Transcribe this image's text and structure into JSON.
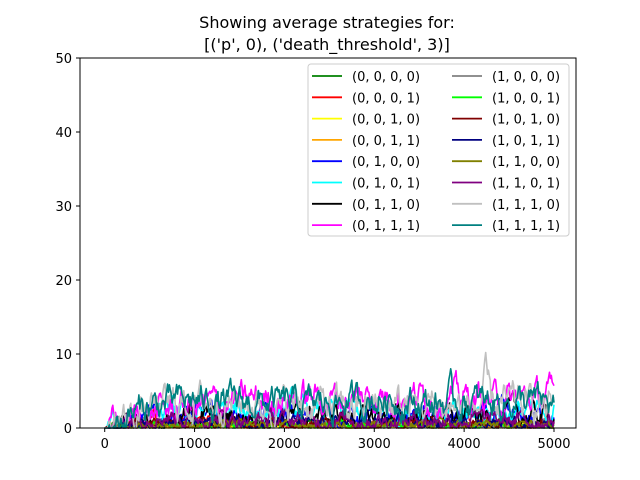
{
  "chart_data": {
    "type": "line",
    "title_lines": [
      "Showing average strategies for:",
      "[('p', 0), ('death_threshold', 3)]"
    ],
    "xlabel": "",
    "ylabel": "",
    "xlim": [
      -275,
      5245
    ],
    "ylim": [
      0,
      50
    ],
    "x_ticks": [
      0,
      1000,
      2000,
      3000,
      4000,
      5000
    ],
    "y_ticks": [
      0,
      10,
      20,
      30,
      40,
      50
    ],
    "x_tick_labels": [
      "0",
      "1000",
      "2000",
      "3000",
      "4000",
      "5000"
    ],
    "y_tick_labels": [
      "0",
      "10",
      "20",
      "30",
      "40",
      "50"
    ],
    "grid": false,
    "legend_position": "top-right",
    "legend_columns": 2,
    "x_range": [
      0,
      5000
    ],
    "series": [
      {
        "name": "(0, 0, 0, 0)",
        "color": "#008000",
        "mean": 0.4,
        "amp": 0.5,
        "peak": 1.4,
        "values": [
          0,
          0.6,
          0.5,
          0.3,
          0.6,
          0.4,
          0.5,
          0.3,
          0.5,
          0.4,
          0.5,
          0.3
        ]
      },
      {
        "name": "(0, 0, 0, 1)",
        "color": "#ff0000",
        "mean": 0.6,
        "amp": 0.7,
        "peak": 2.5,
        "values": [
          0,
          1.1,
          0.8,
          0.6,
          0.7,
          0.6,
          0.5,
          0.7,
          0.5,
          0.6,
          0.5,
          0.6
        ]
      },
      {
        "name": "(0, 0, 1, 0)",
        "color": "#ffff00",
        "mean": 0.3,
        "amp": 0.3,
        "peak": 1.0,
        "values": [
          0,
          0.4,
          0.3,
          0.3,
          0.4,
          0.3,
          0.3,
          0.3,
          0.3,
          0.2,
          0.3,
          0.3
        ]
      },
      {
        "name": "(0, 0, 1, 1)",
        "color": "#ffa500",
        "mean": 0.4,
        "amp": 0.4,
        "peak": 1.3,
        "values": [
          0,
          0.5,
          0.4,
          0.4,
          0.5,
          0.4,
          0.3,
          0.4,
          0.4,
          0.3,
          0.4,
          0.4
        ]
      },
      {
        "name": "(0, 1, 0, 0)",
        "color": "#0000ff",
        "mean": 1.5,
        "amp": 1.2,
        "peak": 4.5,
        "values": [
          0,
          1.4,
          1.8,
          1.6,
          1.7,
          1.5,
          1.4,
          1.6,
          1.5,
          1.7,
          1.5,
          1.6
        ]
      },
      {
        "name": "(0, 1, 0, 1)",
        "color": "#00ffff",
        "mean": 2.0,
        "amp": 1.4,
        "peak": 5.5,
        "values": [
          0,
          1.5,
          2.2,
          2.0,
          2.3,
          2.1,
          2.4,
          2.0,
          2.2,
          1.9,
          2.1,
          2.0
        ]
      },
      {
        "name": "(0, 1, 1, 0)",
        "color": "#000000",
        "mean": 1.5,
        "amp": 1.3,
        "peak": 5.0,
        "values": [
          0,
          1.2,
          1.6,
          1.4,
          1.5,
          1.7,
          1.5,
          1.6,
          1.4,
          1.5,
          1.6,
          1.8
        ]
      },
      {
        "name": "(0, 1, 1, 1)",
        "color": "#ff00ff",
        "mean": 3.5,
        "amp": 1.8,
        "peak": 7.5,
        "values": [
          0,
          2.0,
          3.0,
          3.5,
          4.0,
          4.2,
          4.0,
          4.5,
          4.3,
          4.1,
          3.8,
          4.4
        ]
      },
      {
        "name": "(1, 0, 0, 0)",
        "color": "#808080",
        "mean": 0.5,
        "amp": 0.6,
        "peak": 1.8,
        "values": [
          0,
          0.5,
          0.6,
          0.5,
          0.6,
          0.5,
          0.4,
          0.5,
          0.6,
          0.5,
          0.4,
          0.5
        ]
      },
      {
        "name": "(1, 0, 0, 1)",
        "color": "#00ff00",
        "mean": 0.4,
        "amp": 0.4,
        "peak": 1.2,
        "values": [
          0,
          0.4,
          0.5,
          0.4,
          0.4,
          0.3,
          0.4,
          0.4,
          0.3,
          0.4,
          0.4,
          0.3
        ]
      },
      {
        "name": "(1, 0, 1, 0)",
        "color": "#800000",
        "mean": 0.6,
        "amp": 0.7,
        "peak": 2.2,
        "values": [
          0,
          0.8,
          0.7,
          0.6,
          0.6,
          0.5,
          0.6,
          0.5,
          0.6,
          0.5,
          0.6,
          0.5
        ]
      },
      {
        "name": "(1, 0, 1, 1)",
        "color": "#000080",
        "mean": 0.7,
        "amp": 0.7,
        "peak": 2.5,
        "values": [
          0,
          0.8,
          0.7,
          0.7,
          0.8,
          0.6,
          0.7,
          0.7,
          0.6,
          0.7,
          0.6,
          0.7
        ]
      },
      {
        "name": "(1, 1, 0, 0)",
        "color": "#808000",
        "mean": 0.5,
        "amp": 0.5,
        "peak": 1.5,
        "values": [
          0,
          0.5,
          0.5,
          0.4,
          0.5,
          0.4,
          0.5,
          0.4,
          0.5,
          0.4,
          0.5,
          0.4
        ]
      },
      {
        "name": "(1, 1, 0, 1)",
        "color": "#800080",
        "mean": 1.2,
        "amp": 1.0,
        "peak": 3.5,
        "values": [
          0,
          1.8,
          1.5,
          1.3,
          1.2,
          1.1,
          1.2,
          1.0,
          1.1,
          1.2,
          1.0,
          1.1
        ]
      },
      {
        "name": "(1, 1, 1, 0)",
        "color": "#c0c0c0",
        "mean": 3.0,
        "amp": 2.0,
        "peak": 10.2,
        "values": [
          0,
          2.5,
          3.5,
          3.8,
          3.0,
          3.2,
          2.8,
          3.1,
          3.0,
          2.9,
          3.3,
          3.0
        ]
      },
      {
        "name": "(1, 1, 1, 1)",
        "color": "#008080",
        "mean": 3.5,
        "amp": 1.8,
        "peak": 8.0,
        "values": [
          0,
          2.8,
          3.8,
          3.5,
          3.4,
          3.2,
          3.6,
          3.9,
          3.3,
          3.5,
          3.7,
          3.2
        ]
      }
    ]
  }
}
